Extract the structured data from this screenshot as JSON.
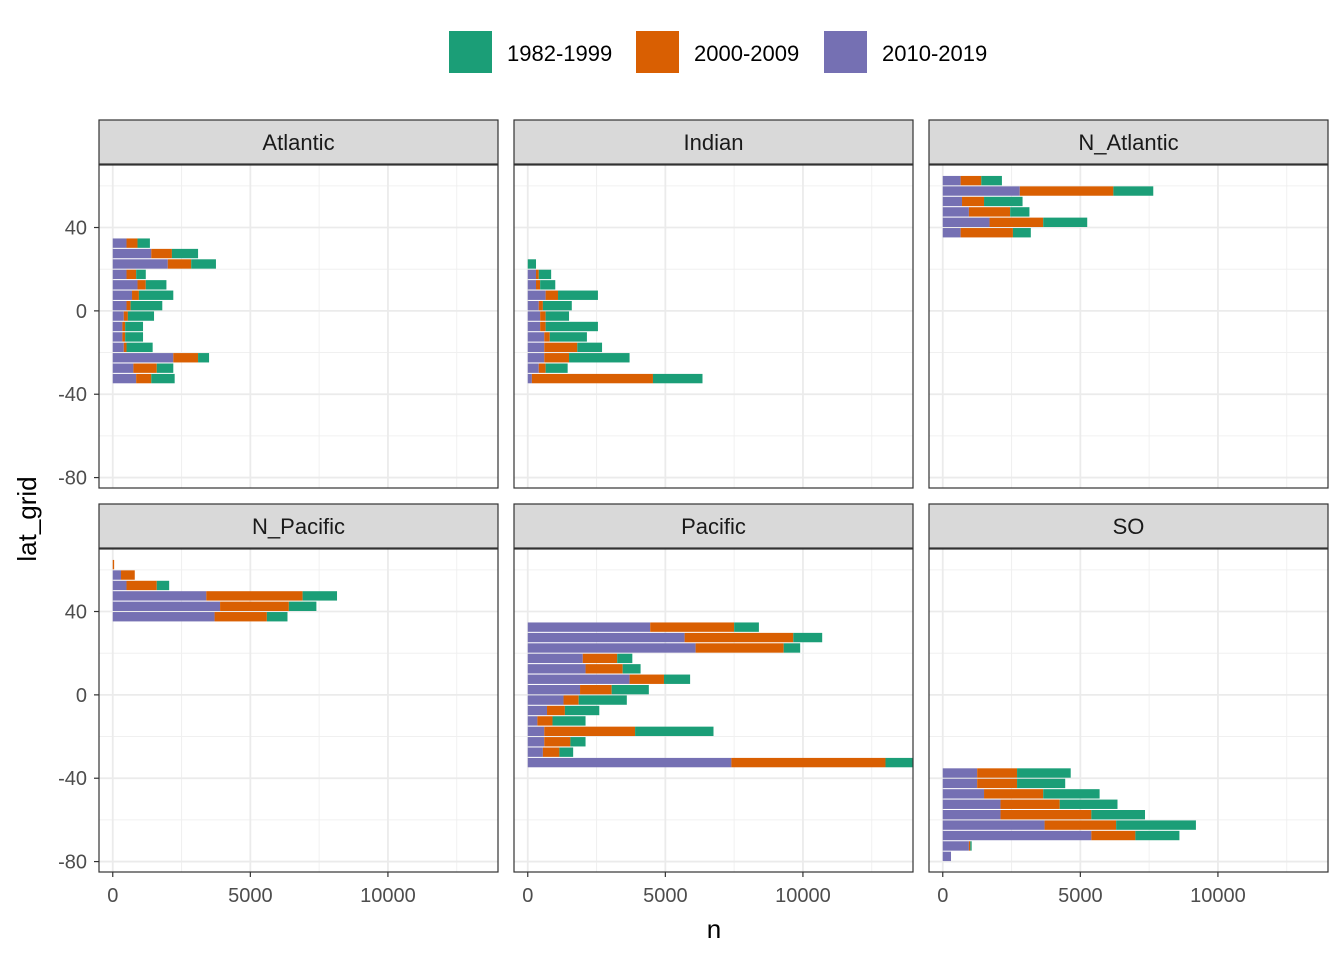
{
  "chart_data": {
    "type": "bar",
    "orientation": "horizontal",
    "stacked": true,
    "xlabel": "n",
    "ylabel": "lat_grid",
    "xlim": [
      -500,
      14000
    ],
    "ylim": [
      -85,
      70
    ],
    "xticks": [
      0,
      5000,
      10000
    ],
    "xtick_labels": [
      "0",
      "5000",
      "10000"
    ],
    "yticks": [
      40,
      0,
      -40,
      -80
    ],
    "ytick_labels": [
      "40",
      "0",
      "-40",
      "-80"
    ],
    "legend": {
      "position": "top",
      "entries": [
        {
          "name": "1982-1999",
          "color": "#1b9e77"
        },
        {
          "name": "2000-2009",
          "color": "#d95f02"
        },
        {
          "name": "2010-2019",
          "color": "#7570b3"
        }
      ]
    },
    "series_order": [
      "2010-2019",
      "2000-2009",
      "1982-1999"
    ],
    "panels": [
      {
        "name": "Atlantic",
        "bars": [
          {
            "lat": 32.5,
            "v": [
              500,
              400,
              450
            ]
          },
          {
            "lat": 27.5,
            "v": [
              1400,
              750,
              950
            ]
          },
          {
            "lat": 22.5,
            "v": [
              2000,
              850,
              900
            ]
          },
          {
            "lat": 17.5,
            "v": [
              500,
              350,
              350
            ]
          },
          {
            "lat": 12.5,
            "v": [
              900,
              300,
              750
            ]
          },
          {
            "lat": 7.5,
            "v": [
              700,
              250,
              1250
            ]
          },
          {
            "lat": 2.5,
            "v": [
              500,
              150,
              1150
            ]
          },
          {
            "lat": -2.5,
            "v": [
              400,
              150,
              950
            ]
          },
          {
            "lat": -7.5,
            "v": [
              350,
              100,
              650
            ]
          },
          {
            "lat": -12.5,
            "v": [
              350,
              100,
              650
            ]
          },
          {
            "lat": -17.5,
            "v": [
              400,
              100,
              950
            ]
          },
          {
            "lat": -22.5,
            "v": [
              2200,
              900,
              400
            ]
          },
          {
            "lat": -27.5,
            "v": [
              750,
              850,
              600
            ]
          },
          {
            "lat": -32.5,
            "v": [
              850,
              550,
              850
            ]
          }
        ]
      },
      {
        "name": "Indian",
        "bars": [
          {
            "lat": 22.5,
            "v": [
              0,
              0,
              300
            ]
          },
          {
            "lat": 17.5,
            "v": [
              300,
              100,
              450
            ]
          },
          {
            "lat": 12.5,
            "v": [
              300,
              150,
              550
            ]
          },
          {
            "lat": 7.5,
            "v": [
              650,
              450,
              1450
            ]
          },
          {
            "lat": 2.5,
            "v": [
              400,
              150,
              1050
            ]
          },
          {
            "lat": -2.5,
            "v": [
              450,
              200,
              850
            ]
          },
          {
            "lat": -7.5,
            "v": [
              450,
              200,
              1900
            ]
          },
          {
            "lat": -12.5,
            "v": [
              600,
              200,
              1350
            ]
          },
          {
            "lat": -17.5,
            "v": [
              600,
              1200,
              900
            ]
          },
          {
            "lat": -22.5,
            "v": [
              600,
              900,
              2200
            ]
          },
          {
            "lat": -27.5,
            "v": [
              400,
              250,
              800
            ]
          },
          {
            "lat": -32.5,
            "v": [
              150,
              4400,
              1800
            ]
          }
        ]
      },
      {
        "name": "N_Atlantic",
        "bars": [
          {
            "lat": 62.5,
            "v": [
              650,
              750,
              750
            ]
          },
          {
            "lat": 57.5,
            "v": [
              2800,
              3400,
              1450
            ]
          },
          {
            "lat": 52.5,
            "v": [
              700,
              800,
              1400
            ]
          },
          {
            "lat": 47.5,
            "v": [
              950,
              1500,
              700
            ]
          },
          {
            "lat": 42.5,
            "v": [
              1700,
              1950,
              1600
            ]
          },
          {
            "lat": 37.5,
            "v": [
              650,
              1900,
              650
            ]
          }
        ]
      },
      {
        "name": "N_Pacific",
        "bars": [
          {
            "lat": 62.5,
            "v": [
              0,
              50,
              0
            ]
          },
          {
            "lat": 57.5,
            "v": [
              300,
              500,
              0
            ]
          },
          {
            "lat": 52.5,
            "v": [
              500,
              1100,
              450
            ]
          },
          {
            "lat": 47.5,
            "v": [
              3400,
              3500,
              1250
            ]
          },
          {
            "lat": 42.5,
            "v": [
              3900,
              2500,
              1000
            ]
          },
          {
            "lat": 37.5,
            "v": [
              3700,
              1900,
              750
            ]
          }
        ]
      },
      {
        "name": "Pacific",
        "bars": [
          {
            "lat": 32.5,
            "v": [
              4450,
              3050,
              900
            ]
          },
          {
            "lat": 27.5,
            "v": [
              5700,
              3950,
              1050
            ]
          },
          {
            "lat": 22.5,
            "v": [
              6100,
              3200,
              600
            ]
          },
          {
            "lat": 17.5,
            "v": [
              2000,
              1250,
              550
            ]
          },
          {
            "lat": 12.5,
            "v": [
              2100,
              1350,
              650
            ]
          },
          {
            "lat": 7.5,
            "v": [
              3700,
              1250,
              950
            ]
          },
          {
            "lat": 2.5,
            "v": [
              1900,
              1150,
              1350
            ]
          },
          {
            "lat": -2.5,
            "v": [
              1300,
              550,
              1750
            ]
          },
          {
            "lat": -7.5,
            "v": [
              700,
              650,
              1250
            ]
          },
          {
            "lat": -12.5,
            "v": [
              350,
              550,
              1200
            ]
          },
          {
            "lat": -17.5,
            "v": [
              600,
              3300,
              2850
            ]
          },
          {
            "lat": -22.5,
            "v": [
              600,
              950,
              550
            ]
          },
          {
            "lat": -27.5,
            "v": [
              550,
              600,
              500
            ]
          },
          {
            "lat": -32.5,
            "v": [
              7400,
              5600,
              1000
            ]
          }
        ]
      },
      {
        "name": "SO",
        "bars": [
          {
            "lat": -37.5,
            "v": [
              1250,
              1450,
              1950
            ]
          },
          {
            "lat": -42.5,
            "v": [
              1250,
              1450,
              1750
            ]
          },
          {
            "lat": -47.5,
            "v": [
              1500,
              2150,
              2050
            ]
          },
          {
            "lat": -52.5,
            "v": [
              2100,
              2150,
              2100
            ]
          },
          {
            "lat": -57.5,
            "v": [
              2100,
              3300,
              1950
            ]
          },
          {
            "lat": -62.5,
            "v": [
              3700,
              2600,
              2900
            ]
          },
          {
            "lat": -67.5,
            "v": [
              5400,
              1600,
              1600
            ]
          },
          {
            "lat": -72.5,
            "v": [
              950,
              50,
              50
            ]
          },
          {
            "lat": -77.5,
            "v": [
              300,
              0,
              0
            ]
          }
        ]
      }
    ]
  }
}
